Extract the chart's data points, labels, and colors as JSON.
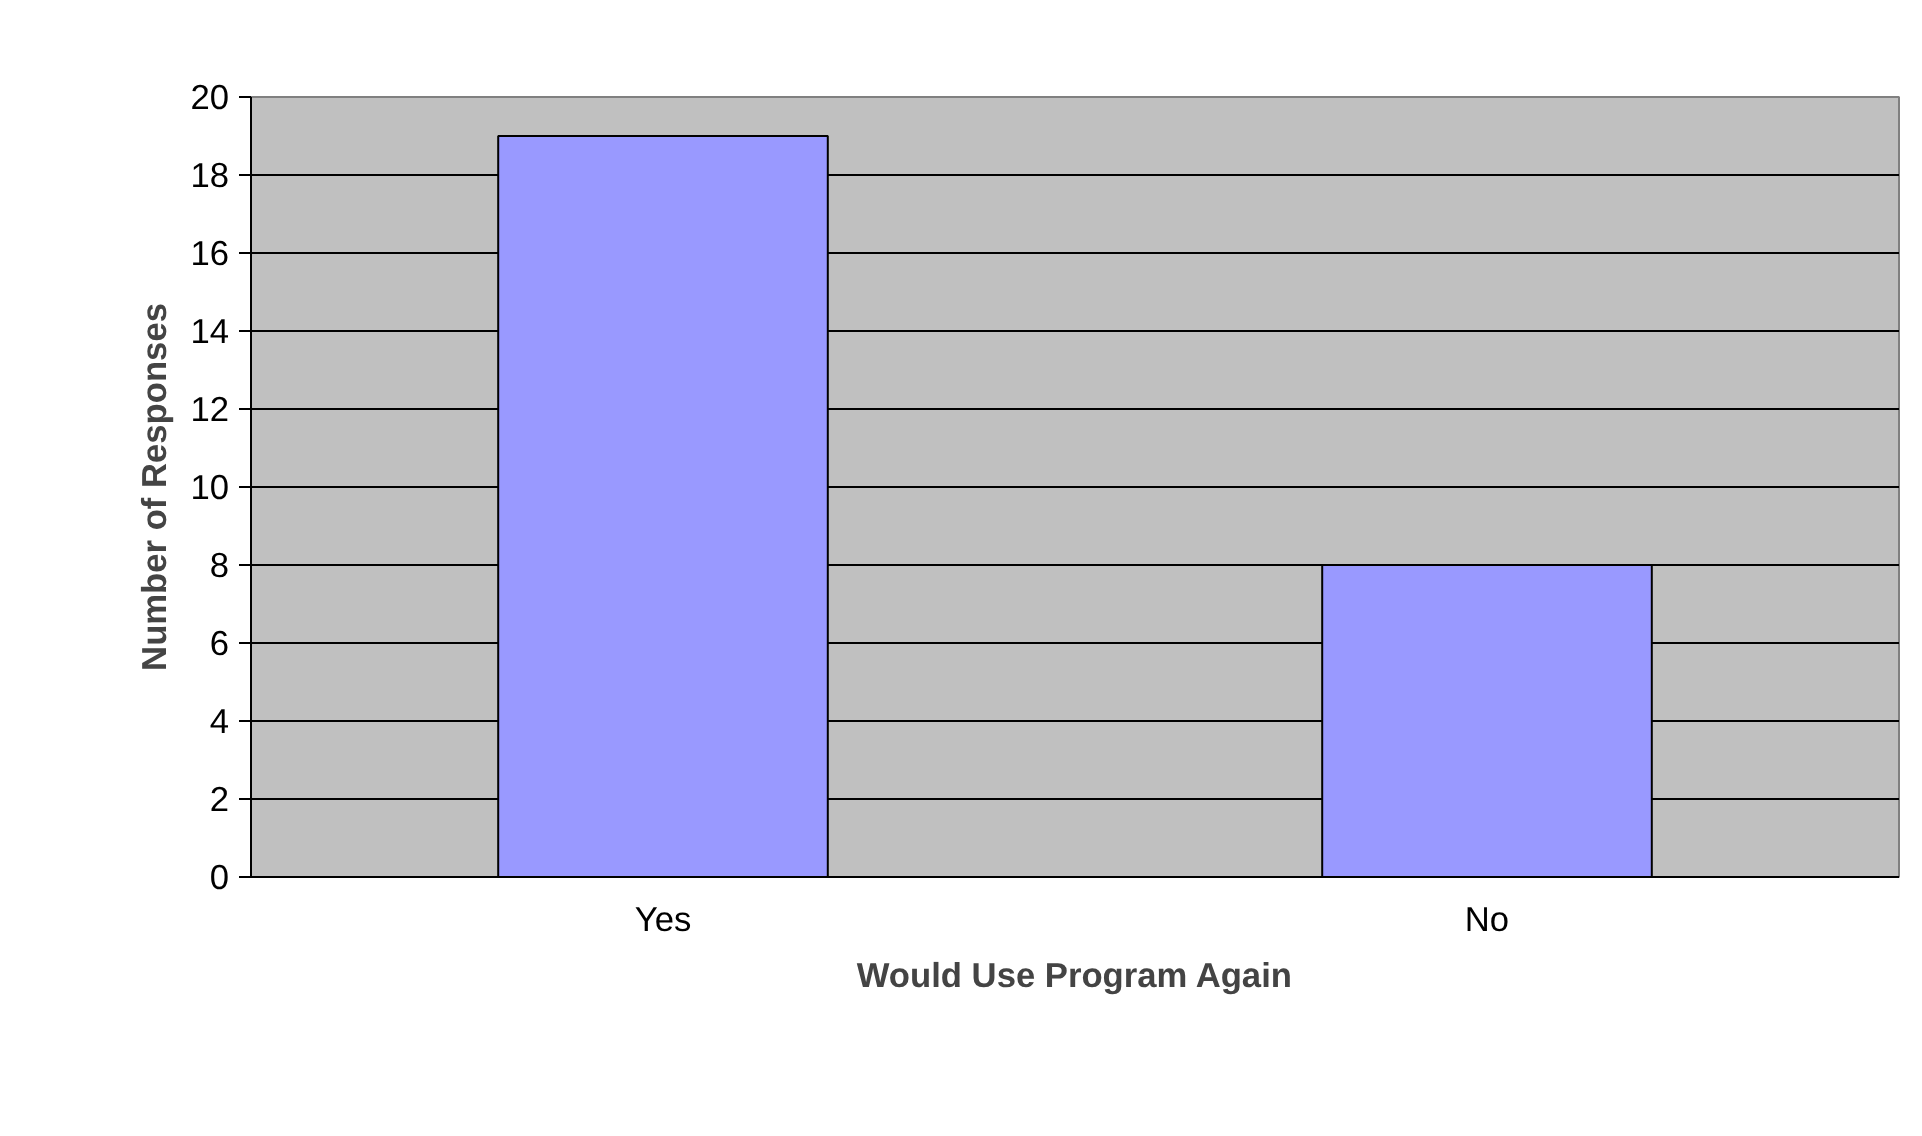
{
  "chart_data": {
    "type": "bar",
    "xlabel": "Would Use Program Again",
    "ylabel": "Number of Responses",
    "categories": [
      "Yes",
      "No"
    ],
    "values": [
      19,
      8
    ],
    "color": "#9999ff",
    "ylim": [
      0,
      20
    ],
    "yticks": [
      0,
      2,
      4,
      6,
      8,
      10,
      12,
      14,
      16,
      18,
      20
    ],
    "grid": "y"
  }
}
